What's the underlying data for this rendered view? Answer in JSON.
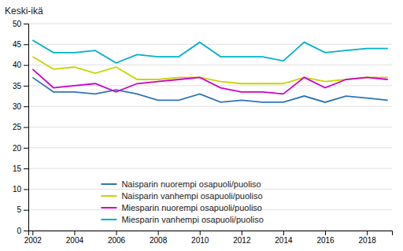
{
  "chart_data": {
    "type": "line",
    "ylabel": "Keski-ikä",
    "x": [
      2002,
      2003,
      2004,
      2005,
      2006,
      2007,
      2008,
      2009,
      2010,
      2011,
      2012,
      2013,
      2014,
      2015,
      2016,
      2017,
      2018,
      2019
    ],
    "series": [
      {
        "name": "Naisparin nuorempi osapuoli/puoliso",
        "color": "#2e75b6",
        "values": [
          37.0,
          33.5,
          33.5,
          33.0,
          34.0,
          33.0,
          31.5,
          31.5,
          33.0,
          31.0,
          31.5,
          31.0,
          31.0,
          32.5,
          31.0,
          32.5,
          32.0,
          31.5
        ]
      },
      {
        "name": "Naisparin vanhempi osapuoli/puoliso",
        "color": "#c8d400",
        "values": [
          42.0,
          39.0,
          39.5,
          38.0,
          39.5,
          36.5,
          36.5,
          37.0,
          37.0,
          36.0,
          35.5,
          35.5,
          35.5,
          37.0,
          36.0,
          36.5,
          37.0,
          37.0
        ]
      },
      {
        "name": "Miesparin nuorempi osapuoli/puoliso",
        "color": "#cc00cc",
        "values": [
          39.0,
          34.5,
          35.0,
          35.5,
          33.5,
          35.5,
          36.0,
          36.5,
          37.0,
          34.5,
          33.5,
          33.5,
          33.0,
          37.0,
          34.5,
          36.5,
          37.0,
          36.5
        ]
      },
      {
        "name": "Miesparin vanhempi osapuoli/puoliso",
        "color": "#00b0c8",
        "values": [
          46.0,
          43.0,
          43.0,
          43.5,
          40.5,
          42.5,
          42.0,
          42.0,
          45.5,
          42.0,
          42.0,
          42.0,
          41.0,
          45.5,
          43.0,
          43.5,
          44.0,
          44.0
        ]
      }
    ],
    "xlim": [
      2001.8,
      2019.2
    ],
    "xticks": [
      2002,
      2004,
      2006,
      2008,
      2010,
      2012,
      2014,
      2016,
      2018
    ],
    "ylim": [
      0,
      50
    ],
    "yticks": [
      0,
      5,
      10,
      15,
      20,
      25,
      30,
      35,
      40,
      45,
      50
    ],
    "grid": true,
    "legend": "lower left"
  }
}
